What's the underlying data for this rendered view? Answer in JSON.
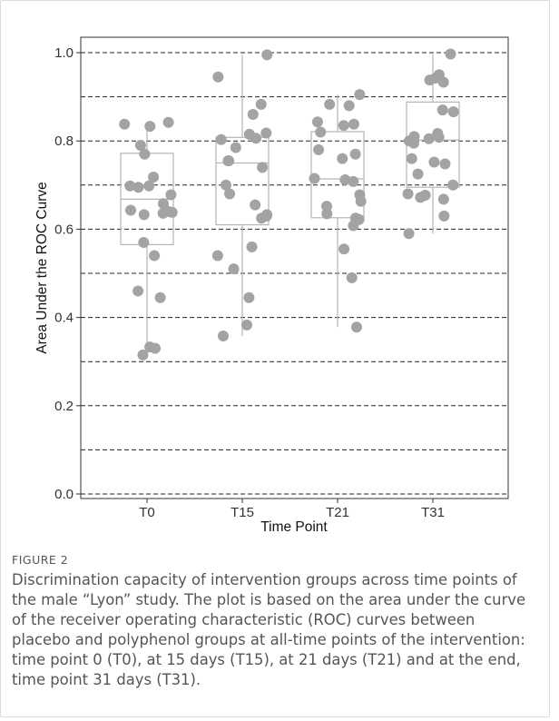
{
  "figure": {
    "label": "FIGURE 2",
    "caption": "Discrimination capacity of intervention groups across time points of the male “Lyon” study. The plot is based on the area under the curve of the receiver operating characteristic (ROC) curves between placebo and polyphenol groups at all-time points of the intervention: time point 0 (T0), at 15 days (T15), at 21 days (T21) and at the end, time point 31 days (T31)."
  },
  "colors": {
    "points": "#a3a3a3",
    "box": "#b5b5b5",
    "frame": "#333333",
    "gridline": "#222222"
  },
  "chart_data": {
    "type": "box+strip",
    "xlabel": "Time Point",
    "ylabel": "Area Under the ROC Curve",
    "categories": [
      "T0",
      "T15",
      "T21",
      "T31"
    ],
    "ylim": [
      -0.01,
      1.03
    ],
    "yticks": [
      0.0,
      0.2,
      0.4,
      0.6,
      0.8,
      1.0
    ],
    "grid": {
      "style": "dashed",
      "horizontal_at": [
        0.0,
        0.1,
        0.2,
        0.3,
        0.4,
        0.5,
        0.6,
        0.7,
        0.8,
        0.9,
        1.0
      ]
    },
    "boxes": [
      {
        "category": "T0",
        "whisker_low": 0.315,
        "q1": 0.565,
        "median": 0.668,
        "q3": 0.772,
        "whisker_high": 0.842
      },
      {
        "category": "T15",
        "whisker_low": 0.358,
        "q1": 0.61,
        "median": 0.75,
        "q3": 0.808,
        "whisker_high": 0.995
      },
      {
        "category": "T21",
        "whisker_low": 0.378,
        "q1": 0.626,
        "median": 0.714,
        "q3": 0.821,
        "whisker_high": 0.905
      },
      {
        "category": "T31",
        "whisker_low": 0.59,
        "q1": 0.695,
        "median": 0.802,
        "q3": 0.888,
        "whisker_high": 0.997
      }
    ],
    "points": [
      {
        "category": "T0",
        "values": [
          0.842,
          0.838,
          0.833,
          0.79,
          0.77,
          0.718,
          0.698,
          0.695,
          0.698,
          0.678,
          0.658,
          0.643,
          0.638,
          0.636,
          0.633,
          0.64,
          0.57,
          0.54,
          0.46,
          0.445,
          0.333,
          0.33,
          0.315
        ]
      },
      {
        "category": "T15",
        "values": [
          0.995,
          0.945,
          0.883,
          0.86,
          0.818,
          0.815,
          0.803,
          0.806,
          0.785,
          0.755,
          0.755,
          0.74,
          0.7,
          0.68,
          0.655,
          0.633,
          0.63,
          0.625,
          0.56,
          0.54,
          0.51,
          0.445,
          0.383,
          0.358
        ]
      },
      {
        "category": "T21",
        "values": [
          0.905,
          0.883,
          0.88,
          0.843,
          0.838,
          0.835,
          0.82,
          0.78,
          0.77,
          0.76,
          0.715,
          0.712,
          0.708,
          0.678,
          0.663,
          0.652,
          0.635,
          0.625,
          0.622,
          0.608,
          0.555,
          0.49,
          0.378
        ]
      },
      {
        "category": "T31",
        "values": [
          0.997,
          0.95,
          0.942,
          0.938,
          0.933,
          0.87,
          0.866,
          0.817,
          0.81,
          0.808,
          0.805,
          0.8,
          0.795,
          0.76,
          0.752,
          0.748,
          0.725,
          0.7,
          0.68,
          0.677,
          0.672,
          0.668,
          0.63,
          0.59
        ]
      }
    ]
  }
}
